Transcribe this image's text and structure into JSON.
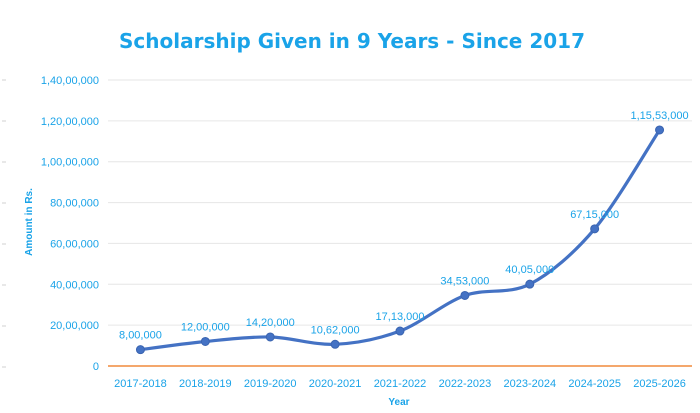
{
  "chart_data": {
    "type": "line",
    "title": "Scholarship Given in 9 Years - Since 2017",
    "xlabel": "Year",
    "ylabel": "Amount in Rs.",
    "categories": [
      "2017-2018",
      "2018-2019",
      "2019-2020",
      "2020-2021",
      "2021-2022",
      "2022-2023",
      "2023-2024",
      "2024-2025",
      "2025-2026"
    ],
    "values": [
      800000,
      1200000,
      1420000,
      1062000,
      1713000,
      3453000,
      4005000,
      6715000,
      11553000
    ],
    "data_labels": [
      "8,00,000",
      "12,00,000",
      "14,20,000",
      "10,62,000",
      "17,13,000",
      "34,53,000",
      "40,05,000",
      "67,15,000",
      "1,15,53,000"
    ],
    "yticks": [
      0,
      2000000,
      4000000,
      6000000,
      8000000,
      10000000,
      12000000,
      14000000
    ],
    "ytick_labels": [
      "0",
      "20,00,000",
      "40,00,000",
      "60,00,000",
      "80,00,000",
      "1,00,00,000",
      "1,20,00,000",
      "1,40,00,000"
    ],
    "ylim": [
      0,
      14000000
    ],
    "grid": true,
    "line_color": "#4472c4",
    "text_color": "#1aa3e8",
    "baseline_color": "#f08a3c"
  }
}
